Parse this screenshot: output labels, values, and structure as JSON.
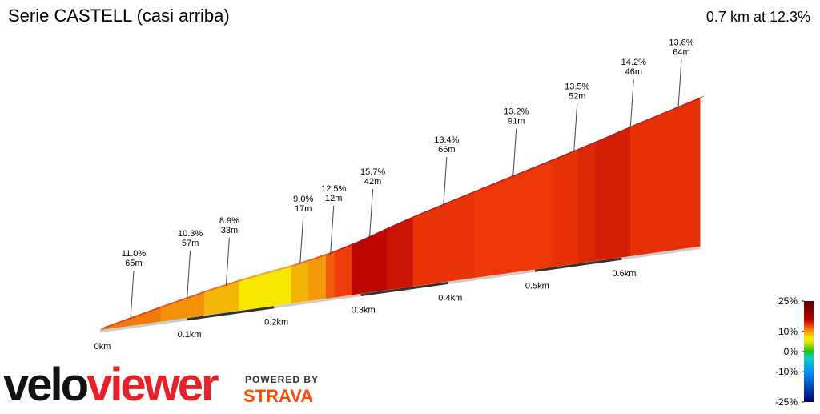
{
  "chart_data": {
    "type": "elevation-profile",
    "title": "Serie CASTELL (casi arriba)",
    "summary": "0.7 km at 12.3%",
    "x": [
      0,
      0.07,
      0.12,
      0.16,
      0.22,
      0.24,
      0.26,
      0.27,
      0.29,
      0.33,
      0.36,
      0.43,
      0.52,
      0.55,
      0.57,
      0.61,
      0.69
    ],
    "grades": [
      11.0,
      10.3,
      8.9,
      7.0,
      9.0,
      10.0,
      12.0,
      13.0,
      15.7,
      15.0,
      13.4,
      13.2,
      13.5,
      14.0,
      14.5,
      13.6
    ],
    "xlim": [
      0,
      0.7
    ],
    "xticks": [
      {
        "value": 0,
        "label": "0km"
      },
      {
        "value": 0.1,
        "label": "0.1km"
      },
      {
        "value": 0.2,
        "label": "0.2km"
      },
      {
        "value": 0.3,
        "label": "0.3km"
      },
      {
        "value": 0.4,
        "label": "0.4km"
      },
      {
        "value": 0.5,
        "label": "0.5km"
      },
      {
        "value": 0.6,
        "label": "0.6km"
      }
    ],
    "annotations": [
      {
        "x": 0.035,
        "grade": "11.0%",
        "length": "65m"
      },
      {
        "x": 0.1,
        "grade": "10.3%",
        "length": "57m"
      },
      {
        "x": 0.145,
        "grade": "8.9%",
        "length": "33m"
      },
      {
        "x": 0.23,
        "grade": "9.0%",
        "length": "17m"
      },
      {
        "x": 0.265,
        "grade": "12.5%",
        "length": "12m"
      },
      {
        "x": 0.31,
        "grade": "15.7%",
        "length": "42m"
      },
      {
        "x": 0.395,
        "grade": "13.4%",
        "length": "66m"
      },
      {
        "x": 0.475,
        "grade": "13.2%",
        "length": "91m"
      },
      {
        "x": 0.545,
        "grade": "13.5%",
        "length": "52m"
      },
      {
        "x": 0.61,
        "grade": "14.2%",
        "length": "46m"
      },
      {
        "x": 0.665,
        "grade": "13.6%",
        "length": "64m"
      }
    ],
    "colorscale": [
      [
        -25,
        "#000070"
      ],
      [
        -10,
        "#0090ff"
      ],
      [
        -3,
        "#10d0c0"
      ],
      [
        0,
        "#20c020"
      ],
      [
        5,
        "#f0e400"
      ],
      [
        7,
        "#f6e800"
      ],
      [
        10,
        "#f39a0a"
      ],
      [
        13,
        "#f03c0a"
      ],
      [
        16,
        "#b80000"
      ],
      [
        25,
        "#5a0000"
      ]
    ],
    "colorbar_ticks": [
      {
        "value": 25,
        "label": "25%"
      },
      {
        "value": 10,
        "label": "10%"
      },
      {
        "value": 0,
        "label": "0%"
      },
      {
        "value": -10,
        "label": "-10%"
      },
      {
        "value": -25,
        "label": "-25%"
      }
    ],
    "logo": {
      "velo": "velo",
      "viewer": "viewer",
      "powered": "POWERED BY",
      "strava": "STRAVA"
    }
  }
}
